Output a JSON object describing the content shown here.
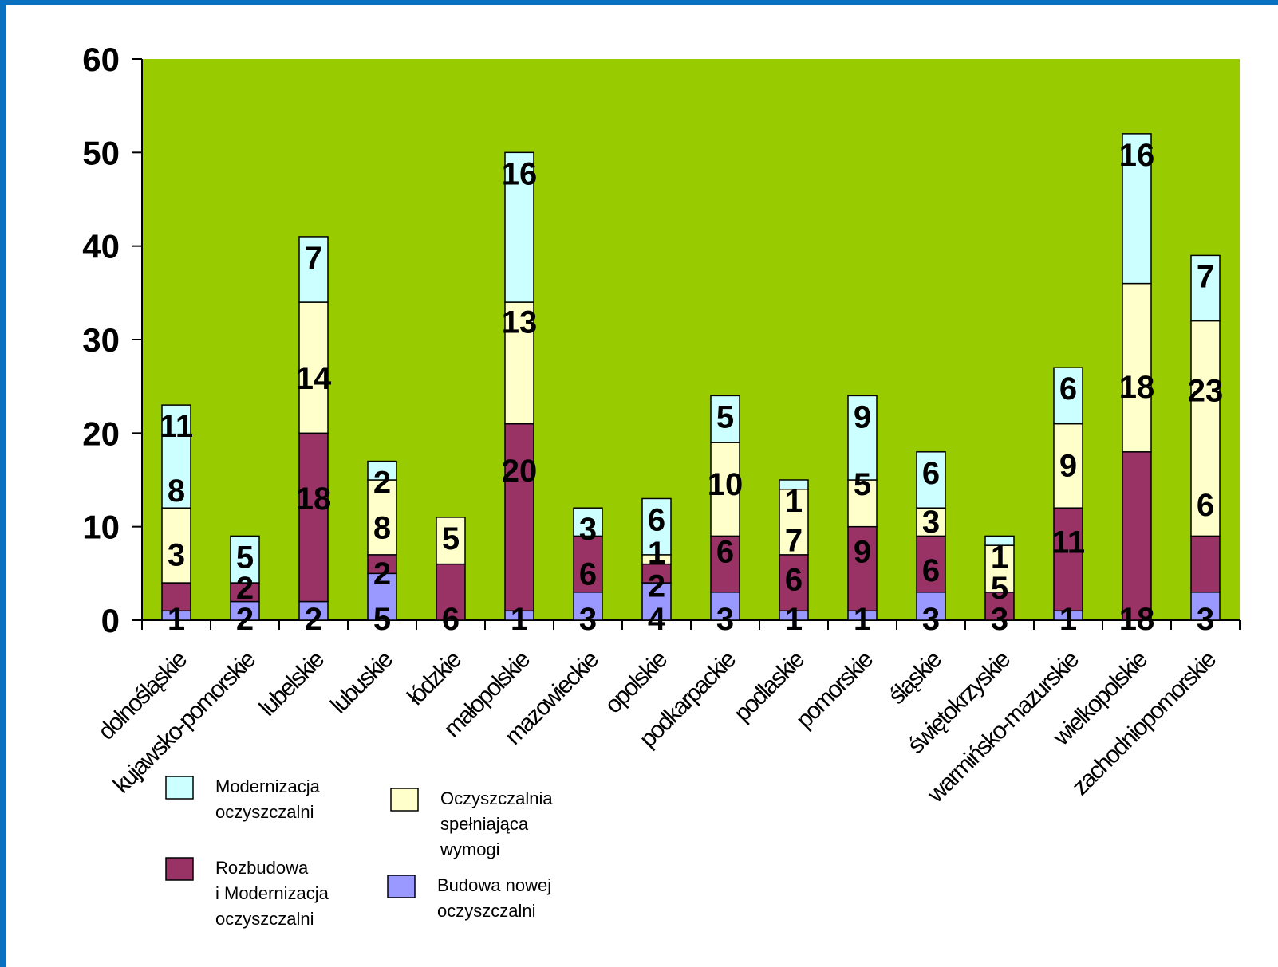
{
  "chart_data": {
    "type": "bar",
    "stacked": true,
    "title": "",
    "xlabel": "",
    "ylabel": "",
    "ylim": [
      0,
      60
    ],
    "yticks": [
      0,
      10,
      20,
      30,
      40,
      50,
      60
    ],
    "grid": false,
    "plot_background": "#99cc00",
    "legend_position": "bottom-left",
    "categories": [
      "dolnośląskie",
      "kujawsko-pomorskie",
      "lubelskie",
      "lubuskie",
      "łódzkie",
      "małopolskie",
      "mazowieckie",
      "opolskie",
      "podkarpackie",
      "podlaskie",
      "pomorskie",
      "śląskie",
      "świętokrzyskie",
      "warmińsko-mazurskie",
      "wielkopolskie",
      "zachodniopomorskie"
    ],
    "series": [
      {
        "name": "Budowa nowej oczyszczalni",
        "color": "#9999ff",
        "values": [
          1,
          2,
          2,
          5,
          0,
          1,
          3,
          4,
          3,
          1,
          1,
          3,
          0,
          1,
          0,
          3
        ]
      },
      {
        "name": "Rozbudowa i Modernizacja oczyszczalni",
        "color": "#993366",
        "values": [
          3,
          2,
          18,
          2,
          6,
          20,
          6,
          2,
          6,
          6,
          9,
          6,
          3,
          11,
          18,
          6
        ]
      },
      {
        "name": "Oczyszczalnia spełniająca wymogi",
        "color": "#ffffcc",
        "values": [
          8,
          0,
          14,
          8,
          5,
          13,
          0,
          1,
          10,
          7,
          5,
          3,
          5,
          9,
          18,
          23
        ]
      },
      {
        "name": "Modernizacja oczyszczalni",
        "color": "#ccffff",
        "values": [
          11,
          5,
          7,
          2,
          0,
          16,
          3,
          6,
          5,
          1,
          9,
          6,
          1,
          6,
          16,
          7
        ]
      }
    ],
    "bar_totals": [
      23,
      9,
      41,
      17,
      11,
      50,
      12,
      13,
      24,
      15,
      24,
      18,
      9,
      27,
      52,
      39
    ],
    "data_labels": [
      {
        "category": "dolnośląskie",
        "texts": [
          "1",
          "3",
          "8",
          "11"
        ]
      },
      {
        "category": "kujawsko-pomorskie",
        "texts": [
          "2",
          "2",
          "5"
        ]
      },
      {
        "category": "lubelskie",
        "texts": [
          "2",
          "18",
          "14",
          "7"
        ]
      },
      {
        "category": "lubuskie",
        "texts": [
          "5",
          "2",
          "8",
          "2"
        ]
      },
      {
        "category": "łódzkie",
        "texts": [
          "6",
          "5"
        ]
      },
      {
        "category": "małopolskie",
        "texts": [
          "1",
          "20",
          "13",
          "16"
        ]
      },
      {
        "category": "mazowieckie",
        "texts": [
          "3",
          "6",
          "3"
        ]
      },
      {
        "category": "opolskie",
        "texts": [
          "4",
          "2",
          "1",
          "6"
        ]
      },
      {
        "category": "podkarpackie",
        "texts": [
          "3",
          "6",
          "10",
          "5"
        ]
      },
      {
        "category": "podlaskie",
        "texts": [
          "1",
          "6",
          "7",
          "1"
        ]
      },
      {
        "category": "pomorskie",
        "texts": [
          "1",
          "9",
          "5",
          "9"
        ]
      },
      {
        "category": "śląskie",
        "texts": [
          "3",
          "6",
          "3",
          "6"
        ]
      },
      {
        "category": "świętokrzyskie",
        "texts": [
          "3",
          "5",
          "1"
        ]
      },
      {
        "category": "warmińsko-mazurskie",
        "texts": [
          "1",
          "11",
          "9",
          "6"
        ]
      },
      {
        "category": "wielkopolskie",
        "texts": [
          "18",
          "18",
          "16"
        ]
      },
      {
        "category": "zachodniopomorskie",
        "texts": [
          "3",
          "6",
          "23",
          "7"
        ]
      }
    ],
    "legend": [
      {
        "lines": [
          "Modernizacja",
          "oczyszczalni"
        ],
        "color": "#ccffff"
      },
      {
        "lines": [
          "Oczyszczalnia",
          "spełniająca",
          "wymogi"
        ],
        "color": "#ffffcc"
      },
      {
        "lines": [
          "Rozbudowa",
          "i Modernizacja",
          "oczyszczalni"
        ],
        "color": "#993366"
      },
      {
        "lines": [
          "Budowa nowej",
          "oczyszczalni"
        ],
        "color": "#9999ff"
      }
    ]
  }
}
